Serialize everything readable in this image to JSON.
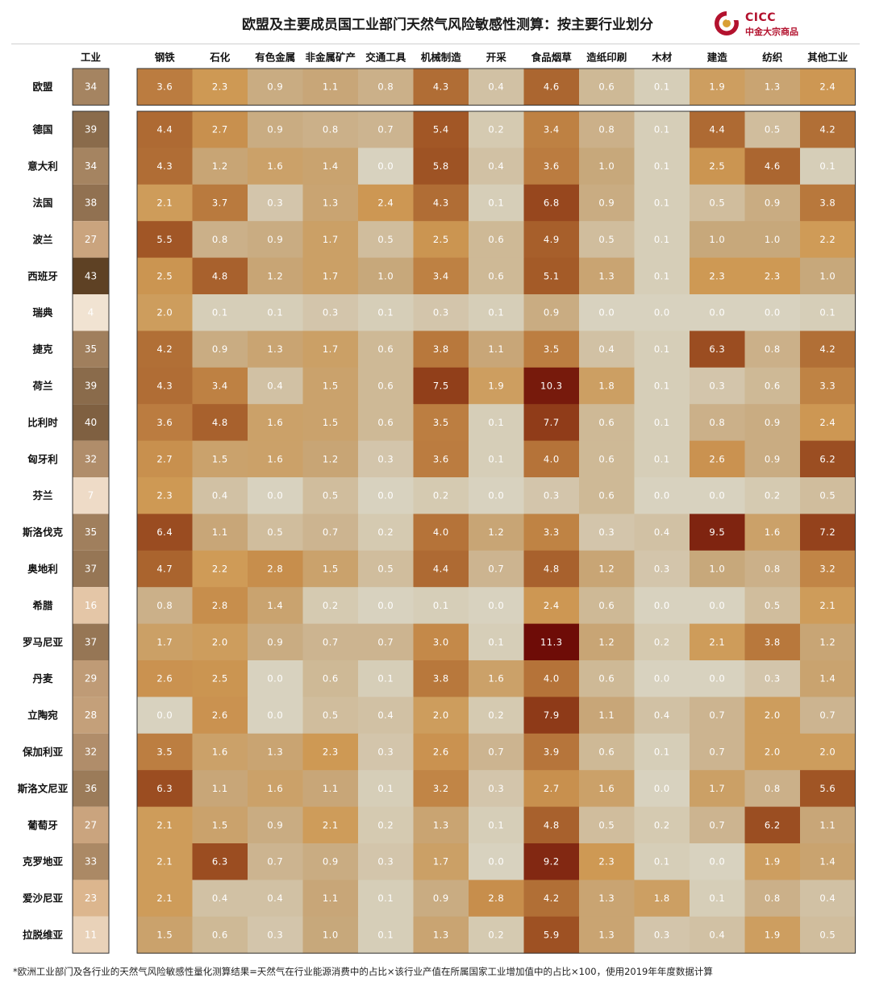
{
  "title": "欧盟及主要成员国工业部门天然气风险敏感性测算：按主要行业划分",
  "logo": {
    "name": "CICC",
    "sub": "中金大宗商品",
    "color": "#b3122e"
  },
  "footnote": "*欧洲工业部门及各行业的天然气风险敏感性量化测算结果=天然气在行业能源消费中的占比×该行业产值在所属国家工业增加值中的占比×100，使用2019年年度数据计算",
  "chart_data": {
    "type": "heatmap",
    "total_header": "工业",
    "columns": [
      "钢铁",
      "石化",
      "有色金属",
      "非金属矿产",
      "交通工具",
      "机械制造",
      "开采",
      "食品烟草",
      "造纸印刷",
      "木材",
      "建造",
      "纺织",
      "其他工业"
    ],
    "eu_row": {
      "name": "欧盟",
      "total": 34,
      "values": [
        3.6,
        2.3,
        0.9,
        1.1,
        0.8,
        4.3,
        0.4,
        4.6,
        0.6,
        0.1,
        1.9,
        1.3,
        2.4
      ]
    },
    "rows": [
      {
        "name": "德国",
        "total": 39,
        "values": [
          4.4,
          2.7,
          0.9,
          0.8,
          0.7,
          5.4,
          0.2,
          3.4,
          0.8,
          0.1,
          4.4,
          0.5,
          4.2
        ]
      },
      {
        "name": "意大利",
        "total": 34,
        "values": [
          4.3,
          1.2,
          1.6,
          1.4,
          0.0,
          5.8,
          0.4,
          3.6,
          1.0,
          0.1,
          2.5,
          4.6,
          0.1
        ]
      },
      {
        "name": "法国",
        "total": 38,
        "values": [
          2.1,
          3.7,
          0.3,
          1.3,
          2.4,
          4.3,
          0.1,
          6.8,
          0.9,
          0.1,
          0.5,
          0.9,
          3.8
        ]
      },
      {
        "name": "波兰",
        "total": 27,
        "values": [
          5.5,
          0.8,
          0.9,
          1.7,
          0.5,
          2.5,
          0.6,
          4.9,
          0.5,
          0.1,
          1.0,
          1.0,
          2.2
        ]
      },
      {
        "name": "西班牙",
        "total": 43,
        "values": [
          2.5,
          4.8,
          1.2,
          1.7,
          1.0,
          3.4,
          0.6,
          5.1,
          1.3,
          0.1,
          2.3,
          2.3,
          1.0
        ]
      },
      {
        "name": "瑞典",
        "total": 4,
        "values": [
          2.0,
          0.1,
          0.1,
          0.3,
          0.1,
          0.3,
          0.1,
          0.9,
          0.0,
          0.0,
          0.0,
          0.0,
          0.1
        ]
      },
      {
        "name": "捷克",
        "total": 35,
        "values": [
          4.2,
          0.9,
          1.3,
          1.7,
          0.6,
          3.8,
          1.1,
          3.5,
          0.4,
          0.1,
          6.3,
          0.8,
          4.2
        ]
      },
      {
        "name": "荷兰",
        "total": 39,
        "values": [
          4.3,
          3.4,
          0.4,
          1.5,
          0.6,
          7.5,
          1.9,
          10.3,
          1.8,
          0.1,
          0.3,
          0.6,
          3.3
        ]
      },
      {
        "name": "比利时",
        "total": 40,
        "values": [
          3.6,
          4.8,
          1.6,
          1.5,
          0.6,
          3.5,
          0.1,
          7.7,
          0.6,
          0.1,
          0.8,
          0.9,
          2.4
        ]
      },
      {
        "name": "匈牙利",
        "total": 32,
        "values": [
          2.7,
          1.5,
          1.6,
          1.2,
          0.3,
          3.6,
          0.1,
          4.0,
          0.6,
          0.1,
          2.6,
          0.9,
          6.2
        ]
      },
      {
        "name": "芬兰",
        "total": 7,
        "values": [
          2.3,
          0.4,
          0.0,
          0.5,
          0.0,
          0.2,
          0.0,
          0.3,
          0.6,
          0.0,
          0.0,
          0.2,
          0.5
        ]
      },
      {
        "name": "斯洛伐克",
        "total": 35,
        "values": [
          6.4,
          1.1,
          0.5,
          0.7,
          0.2,
          4.0,
          1.2,
          3.3,
          0.3,
          0.4,
          9.5,
          1.6,
          7.2
        ]
      },
      {
        "name": "奥地利",
        "total": 37,
        "values": [
          4.7,
          2.2,
          2.8,
          1.5,
          0.5,
          4.4,
          0.7,
          4.8,
          1.2,
          0.3,
          1.0,
          0.8,
          3.2
        ]
      },
      {
        "name": "希腊",
        "total": 16,
        "values": [
          0.8,
          2.8,
          1.4,
          0.2,
          0.0,
          0.1,
          0.0,
          2.4,
          0.6,
          0.0,
          0.0,
          0.5,
          2.1
        ]
      },
      {
        "name": "罗马尼亚",
        "total": 37,
        "values": [
          1.7,
          2.0,
          0.9,
          0.7,
          0.7,
          3.0,
          0.1,
          11.3,
          1.2,
          0.2,
          2.1,
          3.8,
          1.2
        ]
      },
      {
        "name": "丹麦",
        "total": 29,
        "values": [
          2.6,
          2.5,
          0.0,
          0.6,
          0.1,
          3.8,
          1.6,
          4.0,
          0.6,
          0.0,
          0.0,
          0.3,
          1.4
        ]
      },
      {
        "name": "立陶宛",
        "total": 28,
        "values": [
          0.0,
          2.6,
          0.0,
          0.5,
          0.4,
          2.0,
          0.2,
          7.9,
          1.1,
          0.4,
          0.7,
          2.0,
          0.7
        ]
      },
      {
        "name": "保加利亚",
        "total": 32,
        "values": [
          3.5,
          1.6,
          1.3,
          2.3,
          0.3,
          2.6,
          0.7,
          3.9,
          0.6,
          0.1,
          0.7,
          2.0,
          2.0
        ]
      },
      {
        "name": "斯洛文尼亚",
        "total": 36,
        "values": [
          6.3,
          1.1,
          1.6,
          1.1,
          0.1,
          3.2,
          0.3,
          2.7,
          1.6,
          0.0,
          1.7,
          0.8,
          5.6
        ]
      },
      {
        "name": "葡萄牙",
        "total": 27,
        "values": [
          2.1,
          1.5,
          0.9,
          2.1,
          0.2,
          1.3,
          0.1,
          4.8,
          0.5,
          0.2,
          0.7,
          6.2,
          1.1
        ]
      },
      {
        "name": "克罗地亚",
        "total": 33,
        "values": [
          2.1,
          6.3,
          0.7,
          0.9,
          0.3,
          1.7,
          0.0,
          9.2,
          2.3,
          0.1,
          0.0,
          1.9,
          1.4
        ]
      },
      {
        "name": "爱沙尼亚",
        "total": 23,
        "values": [
          2.1,
          0.4,
          0.4,
          1.1,
          0.1,
          0.9,
          2.8,
          4.2,
          1.3,
          1.8,
          0.1,
          0.8,
          0.4
        ]
      },
      {
        "name": "拉脱维亚",
        "total": 11,
        "values": [
          1.5,
          0.6,
          0.3,
          1.0,
          0.1,
          1.3,
          0.2,
          5.9,
          1.3,
          0.3,
          0.4,
          1.9,
          0.5
        ]
      }
    ],
    "colors": {
      "low": "#d8d2bf",
      "mid": "#cf9a55",
      "high": "#a45b28",
      "max": "#6e0c07",
      "total_low": "#f6ece0",
      "total_mid": "#dbb48c",
      "total_high": "#5e4124",
      "text_light": "#ffffff",
      "text_dark": "#3a2a1a"
    }
  }
}
